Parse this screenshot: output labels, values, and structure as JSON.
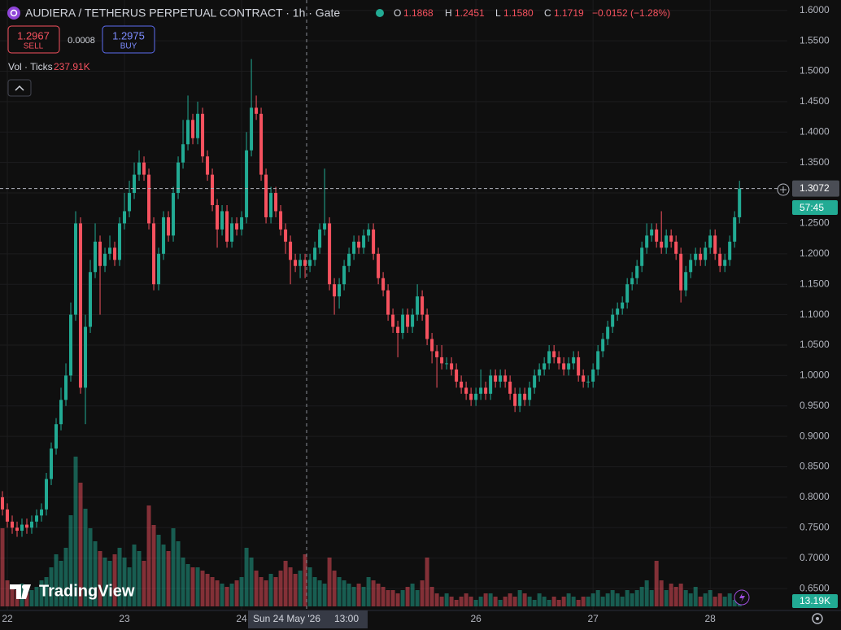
{
  "chart_data": {
    "type": "candlestick",
    "title": "AUDIERA / TETHERUS PERPETUAL CONTRACT · 1h · Gate",
    "ohlc_header": {
      "o_label": "O",
      "o": "1.1868",
      "h_label": "H",
      "h": "1.2451",
      "l_label": "L",
      "l": "1.1580",
      "c_label": "C",
      "c": "1.1719",
      "change": "−0.0152 (−1.28%)"
    },
    "sell": {
      "price": "1.2967",
      "label": "SELL"
    },
    "spread": "0.0008",
    "buy": {
      "price": "1.2975",
      "label": "BUY"
    },
    "volume_title": "Vol · Ticks",
    "volume_total": "237.91K",
    "countdown": "57:45",
    "volume_last_label": "13.19K",
    "crosshair": {
      "date": "Sun 24 May '26",
      "time": "13:00"
    },
    "brand": "TradingView",
    "up_color": "#22ab94",
    "down_color": "#f7525f",
    "ylim": [
      0.614,
      1.617
    ],
    "yticks": [
      {
        "value": 0.65,
        "label": "0.6500"
      },
      {
        "value": 0.7,
        "label": "0.7000"
      },
      {
        "value": 0.75,
        "label": "0.7500"
      },
      {
        "value": 0.8,
        "label": "0.8000"
      },
      {
        "value": 0.85,
        "label": "0.8500"
      },
      {
        "value": 0.9,
        "label": "0.9000"
      },
      {
        "value": 0.95,
        "label": "0.9500"
      },
      {
        "value": 1.0,
        "label": "1.0000"
      },
      {
        "value": 1.05,
        "label": "1.0500"
      },
      {
        "value": 1.1,
        "label": "1.1000"
      },
      {
        "value": 1.15,
        "label": "1.1500"
      },
      {
        "value": 1.2,
        "label": "1.2000"
      },
      {
        "value": 1.25,
        "label": "1.2500"
      },
      {
        "value": 1.3,
        "label": "1.3000"
      },
      {
        "value": 1.35,
        "label": "1.3500"
      },
      {
        "value": 1.4,
        "label": "1.4000"
      },
      {
        "value": 1.45,
        "label": "1.4500"
      },
      {
        "value": 1.5,
        "label": "1.5000"
      },
      {
        "value": 1.55,
        "label": "1.5500"
      },
      {
        "value": 1.6,
        "label": "1.6000"
      }
    ],
    "xlim": [
      -0.5,
      160.8
    ],
    "xticks": [
      {
        "value": 1,
        "label": "22"
      },
      {
        "value": 25,
        "label": "23"
      },
      {
        "value": 49,
        "label": "24"
      },
      {
        "value": 97,
        "label": "26"
      },
      {
        "value": 121,
        "label": "27"
      },
      {
        "value": 145,
        "label": "28"
      }
    ],
    "volume_ylim": [
      0,
      250
    ],
    "grid": true,
    "open": [
      0.8,
      0.78,
      0.76,
      0.75,
      0.745,
      0.755,
      0.75,
      0.76,
      0.77,
      0.78,
      0.83,
      0.88,
      0.92,
      0.96,
      1.0,
      1.1,
      1.25,
      0.98,
      1.08,
      1.17,
      1.22,
      1.18,
      1.2,
      1.21,
      1.19,
      1.25,
      1.27,
      1.3,
      1.33,
      1.35,
      1.33,
      1.25,
      1.15,
      1.2,
      1.26,
      1.23,
      1.3,
      1.35,
      1.38,
      1.42,
      1.39,
      1.43,
      1.36,
      1.33,
      1.28,
      1.24,
      1.27,
      1.22,
      1.25,
      1.24,
      1.26,
      1.37,
      1.44,
      1.43,
      1.33,
      1.26,
      1.3,
      1.27,
      1.24,
      1.22,
      1.19,
      1.18,
      1.19,
      1.18,
      1.19,
      1.21,
      1.24,
      1.25,
      1.15,
      1.13,
      1.15,
      1.18,
      1.2,
      1.22,
      1.21,
      1.23,
      1.24,
      1.2,
      1.16,
      1.14,
      1.1,
      1.08,
      1.07,
      1.1,
      1.08,
      1.1,
      1.13,
      1.1,
      1.06,
      1.04,
      1.03,
      1.02,
      1.02,
      1.01,
      0.99,
      0.98,
      0.97,
      0.96,
      0.97,
      0.98,
      0.97,
      1.0,
      0.99,
      1.0,
      0.99,
      0.97,
      0.95,
      0.97,
      0.96,
      0.98,
      1.0,
      1.01,
      1.02,
      1.04,
      1.03,
      1.02,
      1.01,
      1.02,
      1.03,
      1.0,
      0.99,
      0.99,
      1.01,
      1.04,
      1.06,
      1.08,
      1.1,
      1.11,
      1.12,
      1.15,
      1.16,
      1.18,
      1.21,
      1.23,
      1.24,
      1.22,
      1.21,
      1.23,
      1.22,
      1.2,
      1.14,
      1.17,
      1.19,
      1.2,
      1.19,
      1.21,
      1.23,
      1.2,
      1.18,
      1.19,
      1.22,
      1.26
    ],
    "high": [
      0.81,
      0.79,
      0.77,
      0.76,
      0.765,
      0.765,
      0.77,
      0.78,
      0.79,
      0.84,
      0.89,
      0.93,
      0.98,
      1.02,
      1.12,
      1.27,
      1.26,
      1.1,
      1.19,
      1.25,
      1.23,
      1.21,
      1.23,
      1.22,
      1.26,
      1.3,
      1.32,
      1.35,
      1.37,
      1.36,
      1.34,
      1.26,
      1.21,
      1.27,
      1.27,
      1.31,
      1.36,
      1.42,
      1.46,
      1.43,
      1.45,
      1.44,
      1.37,
      1.34,
      1.29,
      1.28,
      1.28,
      1.26,
      1.26,
      1.27,
      1.4,
      1.52,
      1.46,
      1.44,
      1.34,
      1.31,
      1.31,
      1.28,
      1.25,
      1.23,
      1.2,
      1.2,
      1.2,
      1.2,
      1.22,
      1.25,
      1.34,
      1.26,
      1.16,
      1.16,
      1.19,
      1.21,
      1.23,
      1.23,
      1.24,
      1.25,
      1.25,
      1.21,
      1.17,
      1.15,
      1.11,
      1.09,
      1.11,
      1.11,
      1.11,
      1.15,
      1.14,
      1.11,
      1.07,
      1.05,
      1.05,
      1.03,
      1.03,
      1.02,
      1.0,
      0.99,
      0.98,
      0.98,
      1.01,
      0.99,
      1.01,
      1.01,
      1.01,
      1.01,
      1.0,
      0.98,
      0.98,
      0.98,
      0.99,
      1.01,
      1.02,
      1.03,
      1.05,
      1.05,
      1.04,
      1.03,
      1.03,
      1.04,
      1.04,
      1.01,
      1.0,
      1.02,
      1.05,
      1.07,
      1.09,
      1.11,
      1.12,
      1.13,
      1.16,
      1.17,
      1.19,
      1.22,
      1.25,
      1.25,
      1.25,
      1.27,
      1.24,
      1.24,
      1.23,
      1.21,
      1.18,
      1.2,
      1.21,
      1.21,
      1.22,
      1.24,
      1.24,
      1.21,
      1.2,
      1.23,
      1.27,
      1.32
    ],
    "low": [
      0.77,
      0.75,
      0.74,
      0.735,
      0.735,
      0.74,
      0.74,
      0.75,
      0.76,
      0.77,
      0.82,
      0.87,
      0.91,
      0.95,
      0.99,
      1.09,
      0.97,
      0.92,
      1.07,
      1.16,
      1.1,
      1.17,
      1.19,
      1.18,
      1.18,
      1.24,
      1.26,
      1.29,
      1.32,
      1.32,
      1.24,
      1.14,
      1.14,
      1.19,
      1.22,
      1.22,
      1.29,
      1.34,
      1.37,
      1.38,
      1.38,
      1.35,
      1.32,
      1.27,
      1.21,
      1.23,
      1.21,
      1.21,
      1.23,
      1.23,
      1.25,
      1.36,
      1.42,
      1.32,
      1.25,
      1.25,
      1.26,
      1.23,
      1.2,
      1.15,
      1.17,
      1.16,
      1.16,
      1.17,
      1.18,
      1.2,
      1.23,
      1.14,
      1.1,
      1.11,
      1.14,
      1.17,
      1.19,
      1.2,
      1.2,
      1.22,
      1.19,
      1.15,
      1.13,
      1.09,
      1.07,
      1.03,
      1.06,
      1.07,
      1.07,
      1.09,
      1.09,
      1.05,
      1.02,
      0.98,
      1.01,
      1.01,
      1.0,
      0.98,
      0.97,
      0.96,
      0.95,
      0.95,
      0.96,
      0.96,
      0.96,
      0.98,
      0.98,
      0.98,
      0.96,
      0.94,
      0.94,
      0.95,
      0.95,
      0.97,
      0.99,
      1.0,
      1.01,
      1.02,
      1.01,
      1.0,
      1.0,
      1.01,
      0.99,
      0.98,
      0.98,
      0.98,
      1.0,
      1.03,
      1.05,
      1.07,
      1.09,
      1.1,
      1.11,
      1.14,
      1.15,
      1.17,
      1.2,
      1.22,
      1.21,
      1.2,
      1.2,
      1.21,
      1.19,
      1.12,
      1.13,
      1.16,
      1.18,
      1.18,
      1.18,
      1.2,
      1.19,
      1.17,
      1.17,
      1.18,
      1.21,
      1.25
    ],
    "close": [
      0.78,
      0.76,
      0.75,
      0.745,
      0.755,
      0.75,
      0.76,
      0.77,
      0.78,
      0.83,
      0.88,
      0.92,
      0.96,
      1.0,
      1.1,
      1.25,
      0.98,
      1.08,
      1.17,
      1.22,
      1.18,
      1.2,
      1.21,
      1.19,
      1.25,
      1.27,
      1.3,
      1.33,
      1.35,
      1.33,
      1.25,
      1.15,
      1.2,
      1.26,
      1.23,
      1.3,
      1.35,
      1.38,
      1.42,
      1.39,
      1.43,
      1.36,
      1.33,
      1.28,
      1.24,
      1.27,
      1.22,
      1.25,
      1.24,
      1.26,
      1.37,
      1.44,
      1.43,
      1.33,
      1.26,
      1.3,
      1.27,
      1.24,
      1.22,
      1.19,
      1.18,
      1.19,
      1.18,
      1.19,
      1.21,
      1.24,
      1.25,
      1.15,
      1.13,
      1.15,
      1.18,
      1.2,
      1.22,
      1.21,
      1.23,
      1.24,
      1.2,
      1.16,
      1.14,
      1.1,
      1.08,
      1.07,
      1.1,
      1.08,
      1.1,
      1.13,
      1.1,
      1.06,
      1.04,
      1.03,
      1.02,
      1.02,
      1.01,
      0.99,
      0.98,
      0.97,
      0.96,
      0.97,
      0.98,
      0.97,
      1.0,
      0.99,
      1.0,
      0.99,
      0.97,
      0.95,
      0.97,
      0.96,
      0.98,
      1.0,
      1.01,
      1.02,
      1.04,
      1.03,
      1.02,
      1.01,
      1.02,
      1.03,
      1.0,
      0.99,
      0.99,
      1.01,
      1.04,
      1.06,
      1.08,
      1.1,
      1.11,
      1.12,
      1.15,
      1.16,
      1.18,
      1.21,
      1.23,
      1.24,
      1.22,
      1.21,
      1.23,
      1.22,
      1.2,
      1.14,
      1.17,
      1.19,
      1.2,
      1.19,
      1.21,
      1.23,
      1.2,
      1.18,
      1.19,
      1.22,
      1.26,
      1.3072
    ],
    "volume": [
      120,
      40,
      30,
      25,
      35,
      20,
      25,
      30,
      40,
      45,
      60,
      80,
      70,
      90,
      140,
      230,
      190,
      150,
      120,
      100,
      85,
      75,
      70,
      80,
      90,
      75,
      60,
      95,
      85,
      70,
      155,
      125,
      110,
      95,
      85,
      120,
      100,
      75,
      65,
      60,
      60,
      55,
      50,
      45,
      40,
      35,
      30,
      35,
      40,
      45,
      90,
      75,
      55,
      45,
      40,
      50,
      45,
      55,
      70,
      60,
      50,
      55,
      80,
      60,
      45,
      40,
      35,
      75,
      55,
      45,
      40,
      35,
      30,
      35,
      30,
      45,
      40,
      35,
      30,
      25,
      25,
      20,
      25,
      30,
      35,
      25,
      40,
      75,
      30,
      20,
      15,
      20,
      15,
      10,
      15,
      20,
      15,
      10,
      15,
      20,
      20,
      15,
      10,
      15,
      20,
      15,
      25,
      20,
      15,
      10,
      20,
      15,
      10,
      15,
      10,
      15,
      20,
      15,
      10,
      15,
      15,
      20,
      25,
      15,
      20,
      25,
      20,
      15,
      25,
      20,
      25,
      30,
      40,
      25,
      70,
      40,
      25,
      35,
      30,
      35,
      25,
      20,
      30,
      15,
      20,
      25,
      15,
      20,
      15,
      20,
      10,
      13.19
    ]
  }
}
